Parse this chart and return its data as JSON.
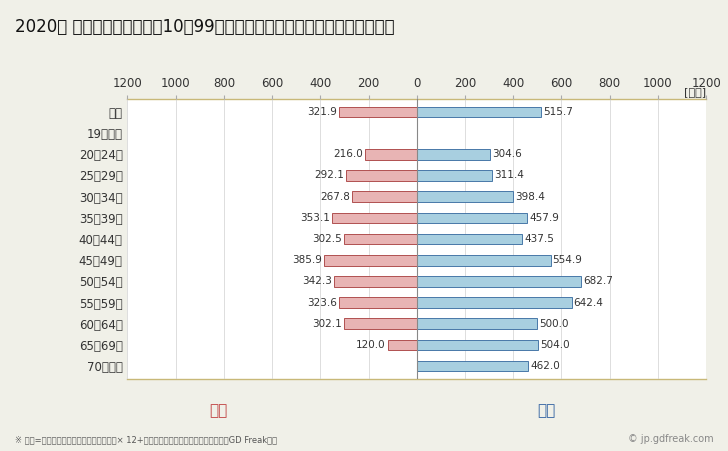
{
  "title": "2020年 民間企業（従業者数10～99人）フルタイム労働者の男女別平均年収",
  "unit_label": "[万円]",
  "footnote": "※ 年収=「きまって支給する現金給与額」× 12+「年間賞与その他特別給与額」としてGD Freak推計",
  "watermark": "© jp.gdfreak.com",
  "categories": [
    "全体",
    "19歳以下",
    "20～24歳",
    "25～29歳",
    "30～34歳",
    "35～39歳",
    "40～44歳",
    "45～49歳",
    "50～54歳",
    "55～59歳",
    "60～64歳",
    "65～69歳",
    "70歳以上"
  ],
  "female_values": [
    321.9,
    0,
    216.0,
    292.1,
    267.8,
    353.1,
    302.5,
    385.9,
    342.3,
    323.6,
    302.1,
    120.0,
    0
  ],
  "male_values": [
    515.7,
    0,
    304.6,
    311.4,
    398.4,
    457.9,
    437.5,
    554.9,
    682.7,
    642.4,
    500.0,
    504.0,
    462.0
  ],
  "female_color": "#e8b4b4",
  "male_color": "#a8cfe0",
  "female_border_color": "#b05050",
  "male_border_color": "#4878a8",
  "female_label": "女性",
  "male_label": "男性",
  "female_label_color": "#c04040",
  "male_label_color": "#3060a0",
  "xlim": 1200,
  "background_color": "#f0f0e8",
  "plot_background_color": "#ffffff",
  "grid_color": "#d0d0d0",
  "axis_border_color": "#c8b878",
  "title_fontsize": 12,
  "tick_fontsize": 8.5,
  "label_fontsize": 8.5,
  "annotation_fontsize": 7.5
}
